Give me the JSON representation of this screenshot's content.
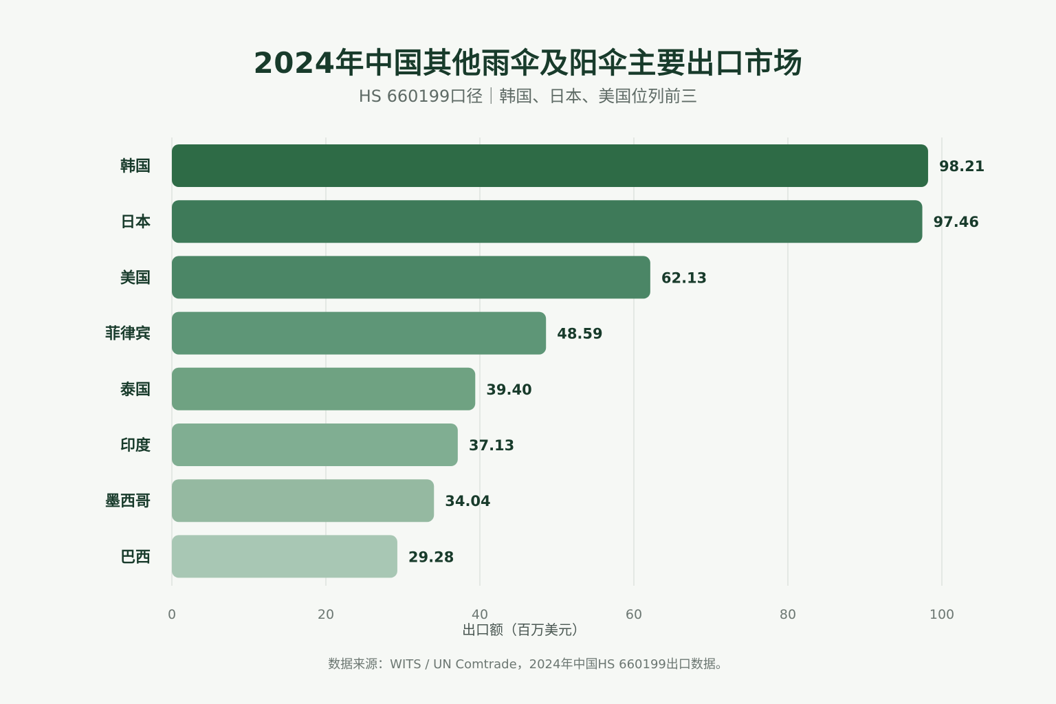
{
  "title": "2024年中国其他雨伞及阳伞主要出口市场",
  "subtitle": "HS 660199口径｜韩国、日本、美国位列前三",
  "source": "数据来源：WITS / UN Comtrade，2024年中国HS 660199出口数据。",
  "colors": {
    "bars": [
      "#2e6b46",
      "#3e7a59",
      "#4b8666",
      "#5e9677",
      "#6fa282",
      "#80ae92",
      "#95b9a1",
      "#a8c7b4"
    ],
    "text": "#183b2b",
    "grid": "#dde3de",
    "background": "#f6f8f5"
  },
  "chart_data": {
    "type": "bar",
    "orientation": "horizontal",
    "title": "2024年中国其他雨伞及阳伞主要出口市场",
    "subtitle": "HS 660199口径｜韩国、日本、美国位列前三",
    "categories": [
      "韩国",
      "日本",
      "美国",
      "菲律宾",
      "泰国",
      "印度",
      "墨西哥",
      "巴西"
    ],
    "values": [
      98.21,
      97.46,
      62.13,
      48.59,
      39.4,
      37.13,
      34.04,
      29.28
    ],
    "value_labels": [
      "98.21",
      "97.46",
      "62.13",
      "48.59",
      "39.40",
      "37.13",
      "34.04",
      "29.28"
    ],
    "xlabel": "出口额（百万美元）",
    "ylabel": "",
    "xlim": [
      0,
      100
    ],
    "xticks": [
      "0",
      "20",
      "40",
      "60",
      "80",
      "100"
    ],
    "grid": "vertical"
  }
}
